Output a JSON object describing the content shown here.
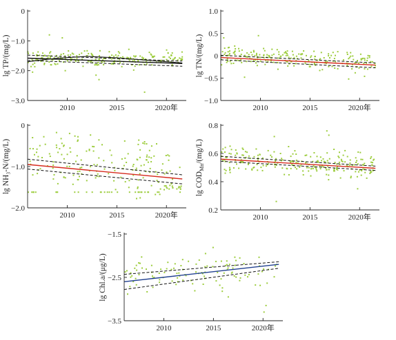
{
  "colors": {
    "points": "#9ccc3c",
    "trend_decreasing": "#d62a1e",
    "trend_increasing": "#1f3f8f",
    "lowess": "#111111",
    "confidence": "#111111"
  },
  "x_unit_suffix": "年",
  "chart_data": [
    {
      "type": "scatter",
      "id": "tp",
      "ylabel": "lg TP/(mg/L)",
      "xlim": [
        2006,
        2022
      ],
      "ylim": [
        -3,
        0
      ],
      "x_ticks": [
        2010,
        2015,
        2020
      ],
      "x_tick_labels": [
        "2010",
        "2015",
        "2020年"
      ],
      "y_ticks": [
        0,
        -1,
        -2,
        -3
      ],
      "y_tick_labels": [
        "0",
        "−1.0",
        "−2.0",
        "−3.0"
      ],
      "center": -1.6,
      "spread": 0.13,
      "count": 230,
      "drift": 0.0,
      "outliers": [
        [
          2008.2,
          -0.8
        ],
        [
          2009.5,
          -0.9
        ],
        [
          2012.9,
          -2.15
        ],
        [
          2013.2,
          -2.3
        ],
        [
          2017.8,
          -2.72
        ],
        [
          2006.5,
          -2.05
        ],
        [
          2009.8,
          -2.0
        ],
        [
          2016.7,
          -1.98
        ]
      ],
      "trend_line": {
        "x": [
          2006,
          2021.6
        ],
        "y": [
          -1.58,
          -1.76
        ],
        "color": "#111111"
      },
      "lowess": {
        "x": [
          2006,
          2009,
          2012,
          2015,
          2018,
          2021.6
        ],
        "y": [
          -1.7,
          -1.58,
          -1.52,
          -1.57,
          -1.65,
          -1.74
        ]
      },
      "ci_upper": {
        "x": [
          2006,
          2021.6
        ],
        "y": [
          -1.48,
          -1.68
        ]
      },
      "ci_lower": {
        "x": [
          2006,
          2021.6
        ],
        "y": [
          -1.66,
          -1.85
        ]
      }
    },
    {
      "type": "scatter",
      "id": "tn",
      "ylabel": "lg TN/(mg/L)",
      "xlim": [
        2006,
        2022
      ],
      "ylim": [
        -1,
        1
      ],
      "x_ticks": [
        2010,
        2015,
        2020
      ],
      "x_tick_labels": [
        "2010",
        "2015",
        "2020年"
      ],
      "y_ticks": [
        1,
        0.5,
        0,
        -0.5,
        -1
      ],
      "y_tick_labels": [
        "1.0",
        "0.5",
        "0",
        "−0.5",
        "−1.0"
      ],
      "center": -0.08,
      "spread": 0.11,
      "count": 220,
      "drift": -0.01,
      "outliers": [
        [
          2006.3,
          0.4
        ],
        [
          2009.8,
          0.45
        ],
        [
          2008.4,
          -0.48
        ],
        [
          2018.9,
          -0.52
        ],
        [
          2020.5,
          -0.46
        ]
      ],
      "trend_line": {
        "x": [
          2006,
          2021.6
        ],
        "y": [
          -0.04,
          -0.21
        ],
        "color": "#d62a1e"
      },
      "lowess": null,
      "ci_upper": {
        "x": [
          2006,
          2021.6
        ],
        "y": [
          0.01,
          -0.16
        ]
      },
      "ci_lower": {
        "x": [
          2006,
          2021.6
        ],
        "y": [
          -0.09,
          -0.27
        ]
      }
    },
    {
      "type": "scatter",
      "id": "nh3",
      "ylabel": "lg NH₃-N/(mg/L)",
      "xlim": [
        2006,
        2022
      ],
      "ylim": [
        -2,
        0
      ],
      "x_ticks": [
        2010,
        2015,
        2020
      ],
      "x_tick_labels": [
        "2010",
        "2015",
        "2020年"
      ],
      "y_ticks": [
        0,
        -1,
        -2
      ],
      "y_tick_labels": [
        "0",
        "−1.0",
        "−2.0"
      ],
      "center": -0.95,
      "spread": 0.3,
      "count": 210,
      "drift": -0.02,
      "outliers": [
        [
          2006.5,
          -0.3
        ],
        [
          2017.8,
          -0.4
        ],
        [
          2018.0,
          -0.45
        ]
      ],
      "trend_line": {
        "x": [
          2006,
          2021.6
        ],
        "y": [
          -0.95,
          -1.3
        ],
        "color": "#d62a1e"
      },
      "lowess": null,
      "ci_upper": {
        "x": [
          2006,
          2021.6
        ],
        "y": [
          -0.82,
          -1.2
        ]
      },
      "ci_lower": {
        "x": [
          2006,
          2021.6
        ],
        "y": [
          -1.06,
          -1.42
        ]
      }
    },
    {
      "type": "scatter",
      "id": "cod",
      "ylabel": "lg COD_Mn/(mg/L)",
      "xlim": [
        2006,
        2022
      ],
      "ylim": [
        0.2,
        0.8
      ],
      "x_ticks": [
        2010,
        2015,
        2020
      ],
      "x_tick_labels": [
        "2010",
        "2015",
        "2020年"
      ],
      "y_ticks": [
        0.8,
        0.6,
        0.4,
        0.2
      ],
      "y_tick_labels": [
        "0.8",
        "0.6",
        "0.4",
        "0.2"
      ],
      "center": 0.53,
      "spread": 0.045,
      "count": 240,
      "drift": -0.003,
      "outliers": [
        [
          2016.7,
          0.76
        ],
        [
          2016.9,
          0.73
        ],
        [
          2011.6,
          0.26
        ],
        [
          2011.4,
          0.72
        ],
        [
          2019.8,
          0.35
        ]
      ],
      "trend_line": {
        "x": [
          2006,
          2021.6
        ],
        "y": [
          0.56,
          0.495
        ],
        "color": "#d62a1e"
      },
      "lowess": null,
      "ci_upper": {
        "x": [
          2006,
          2021.6
        ],
        "y": [
          0.58,
          0.51
        ]
      },
      "ci_lower": {
        "x": [
          2006,
          2021.6
        ],
        "y": [
          0.545,
          0.48
        ]
      }
    },
    {
      "type": "scatter",
      "id": "chla",
      "ylabel": "lg Chl.a/(μg/L)",
      "xlim": [
        2006,
        2022
      ],
      "ylim": [
        -3.5,
        -1.5
      ],
      "x_ticks": [
        2010,
        2015,
        2020
      ],
      "x_tick_labels": [
        "2010",
        "2015",
        "2020年"
      ],
      "y_ticks": [
        -1.5,
        -2.5,
        -3.5
      ],
      "y_tick_labels": [
        "−1.5",
        "−2.5",
        "−3.5"
      ],
      "center": -2.4,
      "spread": 0.2,
      "count": 110,
      "drift": 0.015,
      "outliers": [
        [
          2014.2,
          -1.95
        ],
        [
          2020.1,
          -3.3
        ],
        [
          2020.3,
          -3.15
        ],
        [
          2016.5,
          -2.95
        ]
      ],
      "trend_line": {
        "x": [
          2006,
          2021.6
        ],
        "y": [
          -2.6,
          -2.2
        ],
        "color": "#1f3f8f"
      },
      "lowess": null,
      "ci_upper": {
        "x": [
          2006,
          2021.6
        ],
        "y": [
          -2.43,
          -2.14
        ]
      },
      "ci_lower": {
        "x": [
          2006,
          2021.6
        ],
        "y": [
          -2.78,
          -2.29
        ]
      }
    }
  ]
}
